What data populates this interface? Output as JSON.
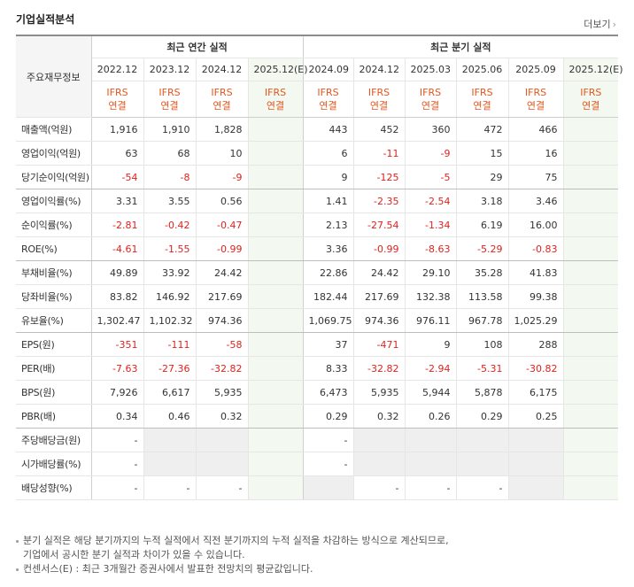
{
  "header": {
    "title": "기업실적분석",
    "more": "더보기"
  },
  "table": {
    "corner": "주요재무정보",
    "groups": [
      "최근 연간 실적",
      "최근 분기 실적"
    ],
    "periods": [
      "2022.12",
      "2023.12",
      "2024.12",
      "2025.12(E)",
      "2024.09",
      "2024.12",
      "2025.03",
      "2025.06",
      "2025.09",
      "2025.12(E)"
    ],
    "standards": [
      [
        "IFRS",
        "연결"
      ],
      [
        "IFRS",
        "연결"
      ],
      [
        "IFRS",
        "연결"
      ],
      [
        "IFRS",
        "연결"
      ],
      [
        "IFRS",
        "연결"
      ],
      [
        "IFRS",
        "연결"
      ],
      [
        "IFRS",
        "연결"
      ],
      [
        "IFRS",
        "연결"
      ],
      [
        "IFRS",
        "연결"
      ],
      [
        "IFRS",
        "연결"
      ]
    ],
    "sections": [
      [
        {
          "label": "매출액(억원)",
          "values": [
            "1,916",
            "1,910",
            "1,828",
            null,
            "443",
            "452",
            "360",
            "472",
            "466",
            null
          ]
        },
        {
          "label": "영업이익(억원)",
          "values": [
            "63",
            "68",
            "10",
            null,
            "6",
            "-11",
            "-9",
            "15",
            "16",
            null
          ]
        },
        {
          "label": "당기순이익(억원)",
          "values": [
            "-54",
            "-8",
            "-9",
            null,
            "9",
            "-125",
            "-5",
            "29",
            "75",
            null
          ]
        }
      ],
      [
        {
          "label": "영업이익률(%)",
          "values": [
            "3.31",
            "3.55",
            "0.56",
            null,
            "1.41",
            "-2.35",
            "-2.54",
            "3.18",
            "3.46",
            null
          ]
        },
        {
          "label": "순이익률(%)",
          "values": [
            "-2.81",
            "-0.42",
            "-0.47",
            null,
            "2.13",
            "-27.54",
            "-1.34",
            "6.19",
            "16.00",
            null
          ]
        },
        {
          "label": "ROE(%)",
          "values": [
            "-4.61",
            "-1.55",
            "-0.99",
            null,
            "3.36",
            "-0.99",
            "-8.63",
            "-5.29",
            "-0.83",
            null
          ]
        }
      ],
      [
        {
          "label": "부채비율(%)",
          "values": [
            "49.89",
            "33.92",
            "24.42",
            null,
            "22.86",
            "24.42",
            "29.10",
            "35.28",
            "41.83",
            null
          ]
        },
        {
          "label": "당좌비율(%)",
          "values": [
            "83.82",
            "146.92",
            "217.69",
            null,
            "182.44",
            "217.69",
            "132.38",
            "113.58",
            "99.38",
            null
          ]
        },
        {
          "label": "유보율(%)",
          "values": [
            "1,302.47",
            "1,102.32",
            "974.36",
            null,
            "1,069.75",
            "974.36",
            "976.11",
            "967.78",
            "1,025.29",
            null
          ]
        }
      ],
      [
        {
          "label": "EPS(원)",
          "values": [
            "-351",
            "-111",
            "-58",
            null,
            "37",
            "-471",
            "9",
            "108",
            "288",
            null
          ]
        },
        {
          "label": "PER(배)",
          "values": [
            "-7.63",
            "-27.36",
            "-32.82",
            null,
            "8.33",
            "-32.82",
            "-2.94",
            "-5.31",
            "-30.82",
            null
          ]
        },
        {
          "label": "BPS(원)",
          "values": [
            "7,926",
            "6,617",
            "5,935",
            null,
            "6,473",
            "5,935",
            "5,944",
            "5,878",
            "6,175",
            null
          ]
        },
        {
          "label": "PBR(배)",
          "values": [
            "0.34",
            "0.46",
            "0.32",
            null,
            "0.29",
            "0.32",
            "0.26",
            "0.29",
            "0.25",
            null
          ]
        }
      ],
      [
        {
          "label": "주당배당금(원)",
          "values": [
            "-",
            null,
            null,
            null,
            "-",
            null,
            null,
            null,
            null,
            null
          ]
        },
        {
          "label": "시가배당률(%)",
          "values": [
            "-",
            null,
            null,
            null,
            "-",
            null,
            null,
            null,
            null,
            null
          ]
        },
        {
          "label": "배당성향(%)",
          "values": [
            "-",
            "-",
            "-",
            null,
            null,
            "-",
            "-",
            "-",
            null,
            null
          ]
        }
      ]
    ]
  },
  "notes": [
    [
      "분기 실적은 해당 분기까지의 누적 실적에서 직전 분기까지의 누적 실적을 차감하는 방식으로 계산되므로,",
      "기업에서 공시한 분기 실적과 차이가 있을 수 있습니다."
    ],
    [
      "컨센서스(E) : 최근 3개월간 증권사에서 발표한 전망치의 평균값입니다."
    ]
  ]
}
